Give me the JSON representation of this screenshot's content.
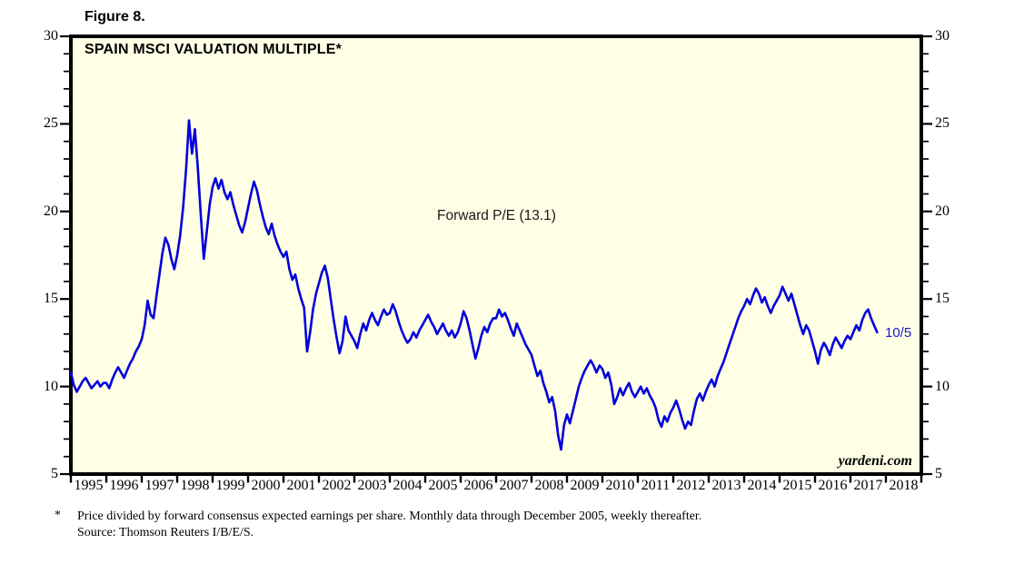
{
  "figure_label": "Figure 8.",
  "chart": {
    "title": "SPAIN MSCI VALUATION MULTIPLE*",
    "annotation": "Forward P/E (13.1)",
    "end_label": "10/5",
    "watermark": "yardeni.com",
    "colors": {
      "line": "#0000DC",
      "plot_bg": "#FFFFE6",
      "border": "#000000",
      "end_label": "#1A1ACC"
    }
  },
  "footnote": {
    "marker": "*",
    "line1": "Price divided by forward consensus expected earnings per share. Monthly data through December 2005, weekly thereafter.",
    "line2": "Source: Thomson Reuters I/B/E/S."
  },
  "chart_data": {
    "type": "line",
    "title": "SPAIN MSCI VALUATION MULTIPLE*",
    "series_name": "Forward P/E",
    "latest_value": 13.1,
    "latest_date_label": "10/5",
    "ylim": [
      5,
      30
    ],
    "y_major_ticks": [
      5,
      10,
      15,
      20,
      25,
      30
    ],
    "y_minor_step": 1,
    "grid": "off",
    "legend": "none",
    "x_start_year": 1995,
    "points_per_year": 12,
    "x_axis_years": [
      1995,
      1996,
      1997,
      1998,
      1999,
      2000,
      2001,
      2002,
      2003,
      2004,
      2005,
      2006,
      2007,
      2008,
      2009,
      2010,
      2011,
      2012,
      2013,
      2014,
      2015,
      2016,
      2017,
      2018
    ],
    "values": [
      10.8,
      10.1,
      9.7,
      10.0,
      10.3,
      10.5,
      10.2,
      9.9,
      10.1,
      10.3,
      10.0,
      10.2,
      10.2,
      9.9,
      10.4,
      10.8,
      11.1,
      10.8,
      10.5,
      10.9,
      11.3,
      11.6,
      12.0,
      12.3,
      12.7,
      13.5,
      14.9,
      14.1,
      13.9,
      15.2,
      16.4,
      17.6,
      18.5,
      18.1,
      17.3,
      16.7,
      17.5,
      18.6,
      20.2,
      22.4,
      25.2,
      23.3,
      24.7,
      22.5,
      19.8,
      17.3,
      18.8,
      20.4,
      21.4,
      21.9,
      21.3,
      21.8,
      21.1,
      20.7,
      21.1,
      20.4,
      19.8,
      19.2,
      18.8,
      19.4,
      20.2,
      21.0,
      21.7,
      21.2,
      20.4,
      19.7,
      19.1,
      18.7,
      19.3,
      18.6,
      18.1,
      17.7,
      17.4,
      17.7,
      16.7,
      16.1,
      16.4,
      15.6,
      15.0,
      14.5,
      12.0,
      13.1,
      14.4,
      15.3,
      15.9,
      16.5,
      16.9,
      16.2,
      15.0,
      13.8,
      12.8,
      11.9,
      12.6,
      14.0,
      13.2,
      12.9,
      12.6,
      12.2,
      13.0,
      13.6,
      13.2,
      13.8,
      14.2,
      13.8,
      13.5,
      14.0,
      14.4,
      14.1,
      14.2,
      14.7,
      14.3,
      13.7,
      13.2,
      12.8,
      12.5,
      12.7,
      13.1,
      12.8,
      13.2,
      13.5,
      13.8,
      14.1,
      13.7,
      13.4,
      13.0,
      13.3,
      13.6,
      13.2,
      12.9,
      13.2,
      12.8,
      13.1,
      13.6,
      14.3,
      13.9,
      13.2,
      12.4,
      11.6,
      12.2,
      12.9,
      13.4,
      13.1,
      13.6,
      13.9,
      13.9,
      14.4,
      14.0,
      14.2,
      13.8,
      13.3,
      12.9,
      13.6,
      13.2,
      12.8,
      12.4,
      12.1,
      11.8,
      11.2,
      10.6,
      10.9,
      10.2,
      9.7,
      9.1,
      9.4,
      8.6,
      7.2,
      6.4,
      7.8,
      8.4,
      7.9,
      8.6,
      9.3,
      10.0,
      10.5,
      10.9,
      11.2,
      11.5,
      11.2,
      10.8,
      11.2,
      11.0,
      10.5,
      10.8,
      10.1,
      9.0,
      9.4,
      9.9,
      9.5,
      9.9,
      10.2,
      9.7,
      9.4,
      9.7,
      10.0,
      9.6,
      9.9,
      9.5,
      9.2,
      8.8,
      8.1,
      7.7,
      8.3,
      8.0,
      8.5,
      8.8,
      9.2,
      8.7,
      8.1,
      7.6,
      8.0,
      7.8,
      8.6,
      9.3,
      9.6,
      9.2,
      9.7,
      10.1,
      10.4,
      10.0,
      10.6,
      11.0,
      11.4,
      11.9,
      12.4,
      12.9,
      13.4,
      13.9,
      14.3,
      14.6,
      15.0,
      14.7,
      15.2,
      15.6,
      15.3,
      14.8,
      15.1,
      14.6,
      14.2,
      14.6,
      14.9,
      15.2,
      15.7,
      15.3,
      14.9,
      15.3,
      14.7,
      14.1,
      13.5,
      13.0,
      13.5,
      13.2,
      12.6,
      12.0,
      11.3,
      12.1,
      12.5,
      12.2,
      11.8,
      12.4,
      12.8,
      12.5,
      12.2,
      12.6,
      12.9,
      12.7,
      13.1,
      13.5,
      13.2,
      13.8,
      14.2,
      14.4,
      13.9,
      13.5,
      13.1
    ]
  }
}
